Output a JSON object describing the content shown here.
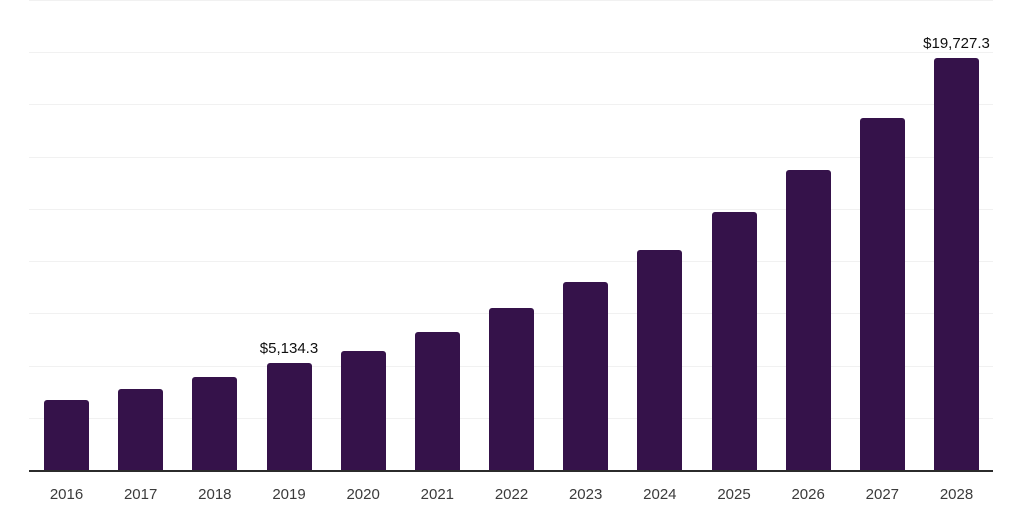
{
  "chart_data": {
    "type": "bar",
    "title": "",
    "xlabel": "",
    "ylabel": "",
    "categories": [
      "2016",
      "2017",
      "2018",
      "2019",
      "2020",
      "2021",
      "2022",
      "2023",
      "2024",
      "2025",
      "2026",
      "2027",
      "2028"
    ],
    "values": [
      3350,
      3890,
      4465,
      5134.3,
      5710,
      6620,
      7780,
      8980,
      10510,
      12340,
      14350,
      16850,
      19727.3
    ],
    "data_labels": [
      {
        "category": "2019",
        "text": "$5,134.3"
      },
      {
        "category": "2028",
        "text": "$19,727.3"
      }
    ],
    "ylim": [
      0,
      22500
    ],
    "gridline_step": 2500,
    "grid": true,
    "legend": false,
    "y_axis_labels_visible": false,
    "colors": {
      "bar": "#35124a",
      "gridline": "#f1f1f1",
      "axis_line": "#2b2b2b",
      "tick_label": "#3b3b3b",
      "data_label": "#0f0f0f",
      "background": "#ffffff"
    }
  }
}
